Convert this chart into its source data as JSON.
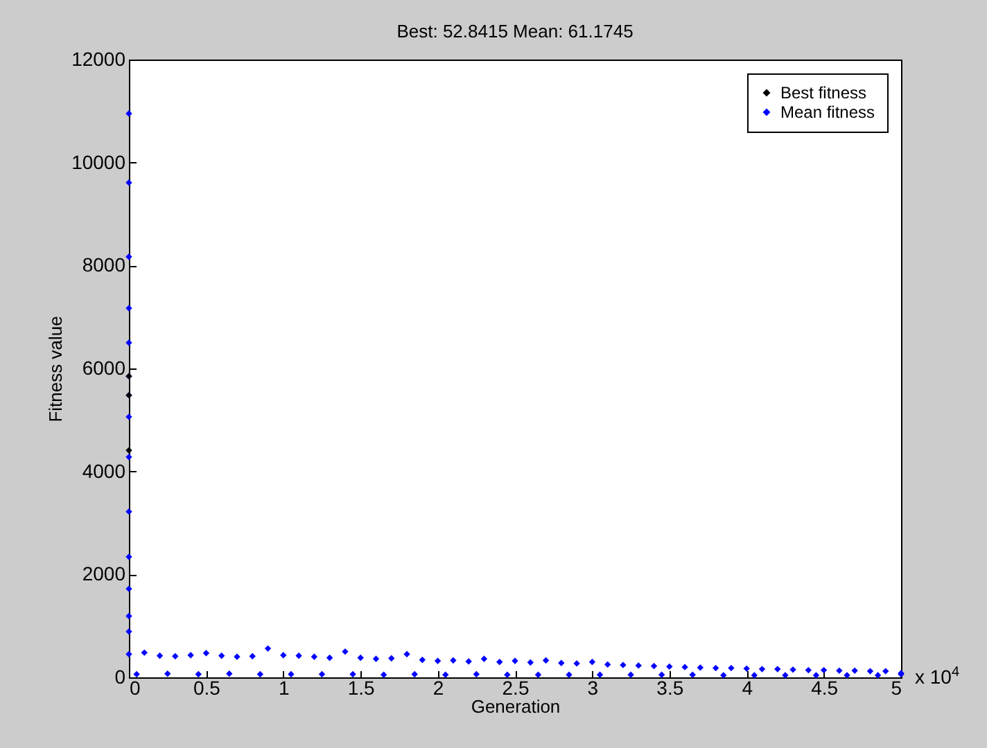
{
  "chart_data": {
    "type": "scatter",
    "title": "Best: 52.8415 Mean: 61.1745",
    "xlabel": "Generation",
    "ylabel": "Fitness value",
    "annotations": [
      "x 10$^{4}$"
    ],
    "xlim": [
      0,
      5
    ],
    "ylim": [
      0,
      12000
    ],
    "xticks": [
      0,
      0.5,
      1,
      1.5,
      2,
      2.5,
      3,
      3.5,
      4,
      4.5,
      5
    ],
    "yticks": [
      0,
      2000,
      4000,
      6000,
      8000,
      10000,
      12000
    ],
    "grid": false,
    "legend": "top right",
    "marker": "diamond",
    "series": [
      {
        "name": "Best fitness",
        "color": "#000000",
        "x": [
          0,
          0,
          0
        ],
        "values": [
          5850,
          5480,
          4410
        ]
      },
      {
        "name": "Mean fitness",
        "color": "#0000ff",
        "x": [
          0,
          0,
          0,
          0,
          0,
          0,
          0,
          0,
          0,
          0,
          0,
          0,
          0,
          0,
          0,
          0.1,
          0.2,
          0.3,
          0.4,
          0.5,
          0.6,
          0.7,
          0.8,
          0.9,
          1,
          1.1,
          1.2,
          1.3,
          1.4,
          1.5,
          1.6,
          1.7,
          1.8,
          1.9,
          2,
          2.1,
          2.2,
          2.3,
          2.4,
          2.5,
          2.6,
          2.7,
          2.8,
          2.9,
          3,
          3.1,
          3.2,
          3.3,
          3.4,
          3.5,
          3.6,
          3.7,
          3.8,
          3.9,
          4,
          4.1,
          4.2,
          4.3,
          4.4,
          4.5,
          4.6,
          4.7,
          4.8,
          4.9,
          5,
          0.05,
          0.25,
          0.45,
          0.65,
          0.85,
          1.05,
          1.25,
          1.45,
          1.65,
          1.85,
          2.05,
          2.25,
          2.45,
          2.65,
          2.85,
          3.05,
          3.25,
          3.45,
          3.65,
          3.85,
          4.05,
          4.25,
          4.45,
          4.65,
          4.85,
          5
        ],
        "values": [
          10950,
          9610,
          8170,
          7170,
          6500,
          5850,
          5480,
          5060,
          4280,
          3220,
          2340,
          1720,
          1190,
          890,
          450,
          480,
          420,
          410,
          430,
          470,
          420,
          400,
          410,
          560,
          430,
          420,
          400,
          380,
          500,
          380,
          360,
          370,
          450,
          340,
          320,
          330,
          310,
          360,
          300,
          320,
          290,
          330,
          280,
          270,
          300,
          250,
          240,
          230,
          220,
          210,
          200,
          190,
          180,
          180,
          170,
          160,
          160,
          150,
          140,
          140,
          130,
          130,
          120,
          120,
          80,
          60,
          70,
          60,
          70,
          60,
          60,
          60,
          60,
          50,
          60,
          50,
          60,
          50,
          50,
          50,
          50,
          50,
          50,
          50,
          40,
          40,
          40,
          40,
          40,
          40,
          60
        ]
      }
    ]
  }
}
